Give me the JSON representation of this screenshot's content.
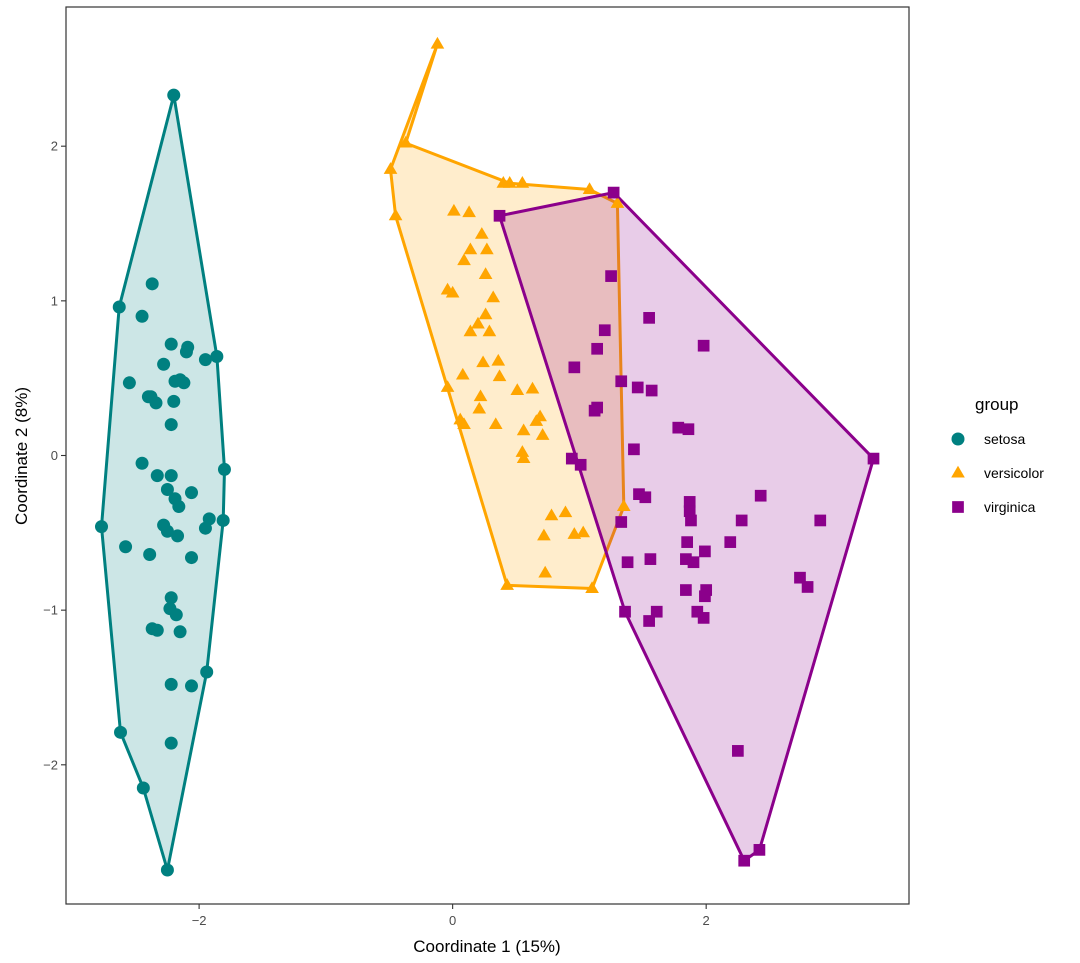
{
  "chart_data": {
    "type": "scatter",
    "xlabel": "Coordinate 1 (15%)",
    "ylabel": "Coordinate 2 (8%)",
    "xlim": [
      -3.05,
      3.6
    ],
    "ylim": [
      -2.9,
      2.9
    ],
    "x_ticks": [
      -2,
      0,
      2
    ],
    "y_ticks": [
      -2,
      -1,
      0,
      1,
      2
    ],
    "grid": false,
    "hulls": true,
    "legend": {
      "title": "group",
      "position": "right"
    },
    "series": [
      {
        "name": "setosa",
        "color": "#008080",
        "marker": "circle",
        "hull": [
          [
            -2.2,
            2.33
          ],
          [
            -2.63,
            0.96
          ],
          [
            -2.77,
            -0.46
          ],
          [
            -2.62,
            -1.79
          ],
          [
            -2.44,
            -2.15
          ],
          [
            -2.25,
            -2.68
          ],
          [
            -1.94,
            -1.4
          ],
          [
            -1.81,
            -0.42
          ],
          [
            -1.8,
            -0.09
          ],
          [
            -1.86,
            0.64
          ]
        ],
        "points": [
          [
            -2.2,
            2.33
          ],
          [
            -2.63,
            0.96
          ],
          [
            -2.77,
            -0.46
          ],
          [
            -2.62,
            -1.79
          ],
          [
            -2.44,
            -2.15
          ],
          [
            -2.25,
            -2.68
          ],
          [
            -1.94,
            -1.4
          ],
          [
            -1.81,
            -0.42
          ],
          [
            -1.8,
            -0.09
          ],
          [
            -1.86,
            0.64
          ],
          [
            -2.37,
            1.11
          ],
          [
            -2.55,
            0.47
          ],
          [
            -2.45,
            0.9
          ],
          [
            -2.28,
            0.59
          ],
          [
            -2.22,
            0.72
          ],
          [
            -2.09,
            0.7
          ],
          [
            -2.1,
            0.67
          ],
          [
            -1.95,
            0.62
          ],
          [
            -2.38,
            0.38
          ],
          [
            -2.34,
            0.34
          ],
          [
            -2.2,
            0.35
          ],
          [
            -2.19,
            0.48
          ],
          [
            -2.15,
            0.49
          ],
          [
            -2.12,
            0.47
          ],
          [
            -2.22,
            0.2
          ],
          [
            -2.45,
            -0.05
          ],
          [
            -2.33,
            -0.13
          ],
          [
            -2.22,
            -0.13
          ],
          [
            -2.25,
            -0.22
          ],
          [
            -2.19,
            -0.28
          ],
          [
            -2.16,
            -0.33
          ],
          [
            -2.06,
            -0.24
          ],
          [
            -2.28,
            -0.45
          ],
          [
            -2.25,
            -0.49
          ],
          [
            -2.17,
            -0.52
          ],
          [
            -1.95,
            -0.47
          ],
          [
            -1.92,
            -0.41
          ],
          [
            -2.06,
            -0.66
          ],
          [
            -2.58,
            -0.59
          ],
          [
            -2.39,
            -0.64
          ],
          [
            -2.22,
            -0.92
          ],
          [
            -2.23,
            -0.99
          ],
          [
            -2.18,
            -1.03
          ],
          [
            -2.37,
            -1.12
          ],
          [
            -2.33,
            -1.13
          ],
          [
            -2.15,
            -1.14
          ],
          [
            -2.22,
            -1.48
          ],
          [
            -2.06,
            -1.49
          ],
          [
            -2.22,
            -1.86
          ],
          [
            -2.4,
            0.38
          ]
        ]
      },
      {
        "name": "versicolor",
        "color": "#FFA500",
        "marker": "triangle",
        "hull": [
          [
            -0.12,
            2.66
          ],
          [
            -0.49,
            1.85
          ],
          [
            -0.45,
            1.55
          ],
          [
            0.43,
            -0.84
          ],
          [
            1.1,
            -0.86
          ],
          [
            1.35,
            -0.33
          ],
          [
            1.3,
            1.63
          ],
          [
            1.08,
            1.72
          ],
          [
            0.45,
            1.76
          ],
          [
            -0.37,
            2.02
          ]
        ],
        "points": [
          [
            -0.12,
            2.66
          ],
          [
            -0.49,
            1.85
          ],
          [
            -0.45,
            1.55
          ],
          [
            0.43,
            -0.84
          ],
          [
            1.1,
            -0.86
          ],
          [
            1.35,
            -0.33
          ],
          [
            1.3,
            1.63
          ],
          [
            1.08,
            1.72
          ],
          [
            0.45,
            1.76
          ],
          [
            -0.37,
            2.02
          ],
          [
            0.4,
            1.76
          ],
          [
            0.55,
            1.76
          ],
          [
            0.01,
            1.58
          ],
          [
            0.13,
            1.57
          ],
          [
            0.23,
            1.43
          ],
          [
            0.27,
            1.33
          ],
          [
            0.14,
            1.33
          ],
          [
            0.09,
            1.26
          ],
          [
            0.26,
            1.17
          ],
          [
            -0.04,
            1.07
          ],
          [
            0.0,
            1.05
          ],
          [
            0.32,
            1.02
          ],
          [
            0.26,
            0.91
          ],
          [
            0.2,
            0.85
          ],
          [
            0.29,
            0.8
          ],
          [
            0.14,
            0.8
          ],
          [
            0.36,
            0.61
          ],
          [
            0.24,
            0.6
          ],
          [
            0.37,
            0.51
          ],
          [
            0.08,
            0.52
          ],
          [
            0.51,
            0.42
          ],
          [
            0.63,
            0.43
          ],
          [
            0.22,
            0.38
          ],
          [
            0.21,
            0.3
          ],
          [
            -0.04,
            0.44
          ],
          [
            0.06,
            0.23
          ],
          [
            0.09,
            0.2
          ],
          [
            0.34,
            0.2
          ],
          [
            0.56,
            0.16
          ],
          [
            0.71,
            0.13
          ],
          [
            0.55,
            0.02
          ],
          [
            0.56,
            -0.02
          ],
          [
            0.66,
            0.22
          ],
          [
            0.69,
            0.25
          ],
          [
            0.89,
            -0.37
          ],
          [
            0.78,
            -0.39
          ],
          [
            0.72,
            -0.52
          ],
          [
            0.96,
            -0.51
          ],
          [
            1.03,
            -0.5
          ],
          [
            0.73,
            -0.76
          ]
        ]
      },
      {
        "name": "virginica",
        "color": "#8B008B",
        "marker": "square",
        "hull": [
          [
            0.37,
            1.55
          ],
          [
            1.27,
            1.7
          ],
          [
            3.32,
            -0.02
          ],
          [
            2.42,
            -2.55
          ],
          [
            2.3,
            -2.62
          ],
          [
            1.36,
            -1.01
          ]
        ],
        "points": [
          [
            0.37,
            1.55
          ],
          [
            1.27,
            1.7
          ],
          [
            3.32,
            -0.02
          ],
          [
            2.42,
            -2.55
          ],
          [
            2.3,
            -2.62
          ],
          [
            1.36,
            -1.01
          ],
          [
            1.25,
            1.16
          ],
          [
            1.55,
            0.89
          ],
          [
            1.2,
            0.81
          ],
          [
            1.98,
            0.71
          ],
          [
            1.14,
            0.69
          ],
          [
            0.96,
            0.57
          ],
          [
            1.33,
            0.48
          ],
          [
            1.46,
            0.44
          ],
          [
            1.57,
            0.42
          ],
          [
            1.14,
            0.31
          ],
          [
            1.12,
            0.29
          ],
          [
            1.78,
            0.18
          ],
          [
            1.86,
            0.17
          ],
          [
            1.43,
            0.04
          ],
          [
            0.94,
            -0.02
          ],
          [
            1.01,
            -0.06
          ],
          [
            1.47,
            -0.25
          ],
          [
            1.52,
            -0.27
          ],
          [
            2.43,
            -0.26
          ],
          [
            1.33,
            -0.43
          ],
          [
            1.87,
            -0.3
          ],
          [
            1.87,
            -0.36
          ],
          [
            1.88,
            -0.42
          ],
          [
            2.28,
            -0.42
          ],
          [
            2.9,
            -0.42
          ],
          [
            2.19,
            -0.56
          ],
          [
            1.85,
            -0.56
          ],
          [
            1.99,
            -0.62
          ],
          [
            1.38,
            -0.69
          ],
          [
            1.56,
            -0.67
          ],
          [
            1.84,
            -0.67
          ],
          [
            1.9,
            -0.69
          ],
          [
            2.74,
            -0.79
          ],
          [
            2.8,
            -0.85
          ],
          [
            1.84,
            -0.87
          ],
          [
            2.0,
            -0.87
          ],
          [
            1.99,
            -0.91
          ],
          [
            1.61,
            -1.01
          ],
          [
            1.93,
            -1.01
          ],
          [
            1.98,
            -1.05
          ],
          [
            1.55,
            -1.07
          ],
          [
            2.25,
            -1.91
          ]
        ]
      }
    ]
  }
}
